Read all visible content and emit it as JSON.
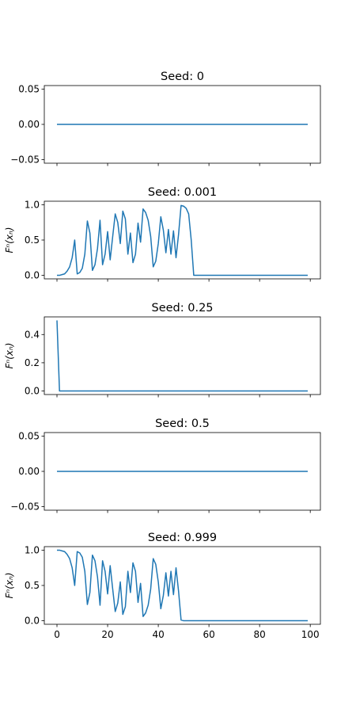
{
  "chart_data": [
    {
      "type": "line",
      "title": "Seed: 0",
      "ylabel": "",
      "xlim": [
        -5,
        104
      ],
      "ylim": [
        -0.055,
        0.055
      ],
      "yticks": [
        0.05,
        0.0,
        -0.05
      ],
      "ytick_labels": [
        "0.05",
        "0.00",
        "−0.05"
      ],
      "xticks": [
        0,
        20,
        40,
        60,
        80,
        100
      ],
      "xtick_labels": [
        "",
        "",
        "",
        "",
        "",
        ""
      ],
      "series": [
        {
          "color": "#1f77b4",
          "x_start": 0,
          "x_end": 99,
          "values": [
            0,
            0
          ]
        }
      ]
    },
    {
      "type": "line",
      "title": "Seed: 0.001",
      "ylabel": "Fⁿ(xₙ)",
      "xlim": [
        -5,
        104
      ],
      "ylim": [
        -0.05,
        1.05
      ],
      "yticks": [
        1.0,
        0.5,
        0.0
      ],
      "ytick_labels": [
        "1.0",
        "0.5",
        "0.0"
      ],
      "xticks": [
        0,
        20,
        40,
        60,
        80,
        100
      ],
      "xtick_labels": [
        "",
        "",
        "",
        "",
        "",
        ""
      ],
      "series": [
        {
          "color": "#1f77b4",
          "x_start": 0,
          "x_end": 99,
          "values": [
            0.0,
            0.0,
            0.01,
            0.02,
            0.06,
            0.12,
            0.25,
            0.5,
            0.02,
            0.04,
            0.1,
            0.3,
            0.77,
            0.6,
            0.07,
            0.15,
            0.38,
            0.78,
            0.15,
            0.3,
            0.62,
            0.22,
            0.55,
            0.87,
            0.75,
            0.45,
            0.91,
            0.8,
            0.3,
            0.6,
            0.18,
            0.3,
            0.74,
            0.47,
            0.94,
            0.89,
            0.78,
            0.55,
            0.12,
            0.2,
            0.45,
            0.83,
            0.64,
            0.32,
            0.65,
            0.3,
            0.63,
            0.25,
            0.58,
            0.99,
            0.98,
            0.95,
            0.87,
            0.5,
            0.0,
            0.0,
            0.0,
            0.0,
            0.0,
            0.0,
            0.0,
            0.0,
            0.0,
            0.0,
            0.0,
            0.0,
            0.0,
            0.0,
            0.0,
            0.0,
            0.0,
            0.0,
            0.0,
            0.0,
            0.0,
            0.0,
            0.0,
            0.0,
            0.0,
            0.0,
            0.0,
            0.0,
            0.0,
            0.0,
            0.0,
            0.0,
            0.0,
            0.0,
            0.0,
            0.0,
            0.0,
            0.0,
            0.0,
            0.0,
            0.0,
            0.0,
            0.0,
            0.0,
            0.0,
            0.0
          ]
        }
      ]
    },
    {
      "type": "line",
      "title": "Seed: 0.25",
      "ylabel": "Fⁿ(xₙ)",
      "xlim": [
        -5,
        104
      ],
      "ylim": [
        -0.025,
        0.525
      ],
      "yticks": [
        0.4,
        0.2,
        0.0
      ],
      "ytick_labels": [
        "0.4",
        "0.2",
        "0.0"
      ],
      "xticks": [
        0,
        20,
        40,
        60,
        80,
        100
      ],
      "xtick_labels": [
        "",
        "",
        "",
        "",
        "",
        ""
      ],
      "series": [
        {
          "color": "#1f77b4",
          "x_start": 0,
          "x_end": 99,
          "values": [
            0.5,
            0.0,
            0.0,
            0.0,
            0.0,
            0.0,
            0.0,
            0.0,
            0.0,
            0.0,
            0.0,
            0.0,
            0.0,
            0.0,
            0.0,
            0.0,
            0.0,
            0.0,
            0.0,
            0.0,
            0.0,
            0.0,
            0.0,
            0.0,
            0.0,
            0.0,
            0.0,
            0.0,
            0.0,
            0.0,
            0.0,
            0.0,
            0.0,
            0.0,
            0.0,
            0.0,
            0.0,
            0.0,
            0.0,
            0.0,
            0.0,
            0.0,
            0.0,
            0.0,
            0.0,
            0.0,
            0.0,
            0.0,
            0.0,
            0.0,
            0.0,
            0.0,
            0.0,
            0.0,
            0.0,
            0.0,
            0.0,
            0.0,
            0.0,
            0.0,
            0.0,
            0.0,
            0.0,
            0.0,
            0.0,
            0.0,
            0.0,
            0.0,
            0.0,
            0.0,
            0.0,
            0.0,
            0.0,
            0.0,
            0.0,
            0.0,
            0.0,
            0.0,
            0.0,
            0.0,
            0.0,
            0.0,
            0.0,
            0.0,
            0.0,
            0.0,
            0.0,
            0.0,
            0.0,
            0.0,
            0.0,
            0.0,
            0.0,
            0.0,
            0.0,
            0.0,
            0.0,
            0.0,
            0.0,
            0.0
          ]
        }
      ]
    },
    {
      "type": "line",
      "title": "Seed: 0.5",
      "ylabel": "",
      "xlim": [
        -5,
        104
      ],
      "ylim": [
        -0.055,
        0.055
      ],
      "yticks": [
        0.05,
        0.0,
        -0.05
      ],
      "ytick_labels": [
        "0.05",
        "0.00",
        "−0.05"
      ],
      "xticks": [
        0,
        20,
        40,
        60,
        80,
        100
      ],
      "xtick_labels": [
        "",
        "",
        "",
        "",
        "",
        ""
      ],
      "series": [
        {
          "color": "#1f77b4",
          "x_start": 0,
          "x_end": 99,
          "values": [
            0,
            0
          ]
        }
      ]
    },
    {
      "type": "line",
      "title": "Seed: 0.999",
      "ylabel": "Fⁿ(xₙ)",
      "xlim": [
        -5,
        104
      ],
      "ylim": [
        -0.05,
        1.05
      ],
      "yticks": [
        1.0,
        0.5,
        0.0
      ],
      "ytick_labels": [
        "1.0",
        "0.5",
        "0.0"
      ],
      "xticks": [
        0,
        20,
        40,
        60,
        80,
        100
      ],
      "xtick_labels": [
        "0",
        "20",
        "40",
        "60",
        "80",
        "100"
      ],
      "series": [
        {
          "color": "#1f77b4",
          "x_start": 0,
          "x_end": 99,
          "values": [
            1.0,
            1.0,
            0.99,
            0.98,
            0.94,
            0.88,
            0.75,
            0.5,
            0.98,
            0.96,
            0.9,
            0.7,
            0.23,
            0.4,
            0.93,
            0.85,
            0.62,
            0.22,
            0.85,
            0.7,
            0.38,
            0.78,
            0.45,
            0.13,
            0.25,
            0.55,
            0.09,
            0.2,
            0.7,
            0.4,
            0.82,
            0.7,
            0.26,
            0.53,
            0.06,
            0.11,
            0.22,
            0.45,
            0.88,
            0.8,
            0.55,
            0.17,
            0.36,
            0.68,
            0.35,
            0.7,
            0.37,
            0.75,
            0.42,
            0.01,
            0.0,
            0.0,
            0.0,
            0.0,
            0.0,
            0.0,
            0.0,
            0.0,
            0.0,
            0.0,
            0.0,
            0.0,
            0.0,
            0.0,
            0.0,
            0.0,
            0.0,
            0.0,
            0.0,
            0.0,
            0.0,
            0.0,
            0.0,
            0.0,
            0.0,
            0.0,
            0.0,
            0.0,
            0.0,
            0.0,
            0.0,
            0.0,
            0.0,
            0.0,
            0.0,
            0.0,
            0.0,
            0.0,
            0.0,
            0.0,
            0.0,
            0.0,
            0.0,
            0.0,
            0.0,
            0.0,
            0.0,
            0.0,
            0.0,
            0.0
          ]
        }
      ]
    }
  ]
}
